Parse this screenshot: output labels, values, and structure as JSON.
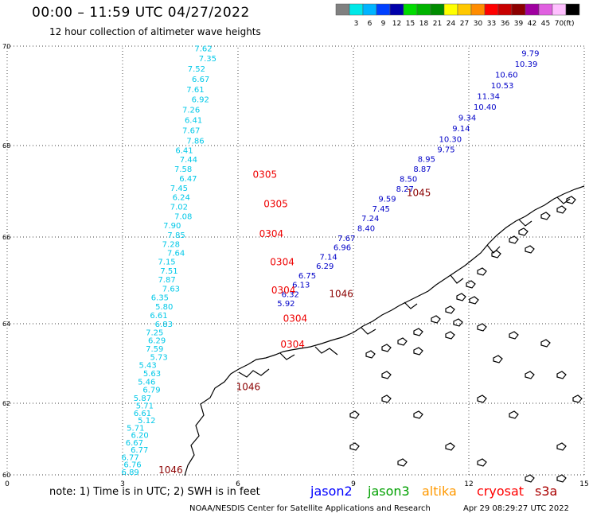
{
  "header": {
    "title": "00:00 – 11:59 UTC 04/27/2022",
    "subtitle": "12 hour collection of altimeter wave heights"
  },
  "legend": {
    "unit": "(ft)",
    "bins": [
      {
        "label": "",
        "color": "#808080"
      },
      {
        "label": "3",
        "color": "#00e8e8"
      },
      {
        "label": "6",
        "color": "#00b4ff"
      },
      {
        "label": "9",
        "color": "#0040ff"
      },
      {
        "label": "12",
        "color": "#0000aa"
      },
      {
        "label": "15",
        "color": "#00dc00"
      },
      {
        "label": "18",
        "color": "#00b400"
      },
      {
        "label": "21",
        "color": "#008c00"
      },
      {
        "label": "24",
        "color": "#ffff00"
      },
      {
        "label": "27",
        "color": "#ffc800"
      },
      {
        "label": "30",
        "color": "#ff8c00"
      },
      {
        "label": "33",
        "color": "#ff0000"
      },
      {
        "label": "36",
        "color": "#c80000"
      },
      {
        "label": "39",
        "color": "#8c0000"
      },
      {
        "label": "42",
        "color": "#a000a0"
      },
      {
        "label": "45",
        "color": "#e060e0"
      },
      {
        "label": "70",
        "color": "#ffc0ff"
      },
      {
        "label": "",
        "color": "#000000"
      }
    ]
  },
  "map": {
    "lon_range": [
      0,
      15
    ],
    "lat_range": [
      60,
      70
    ],
    "x_ticks": [
      "0",
      "3",
      "6",
      "9",
      "12",
      "15"
    ],
    "y_ticks": [
      "60",
      "62",
      "64",
      "66",
      "68",
      "70"
    ],
    "x_tick_values": [
      0,
      3,
      6,
      9,
      12,
      15
    ],
    "y_tick_values": [
      60,
      62,
      64,
      66,
      68,
      70
    ],
    "gridlines": "dotted"
  },
  "tracks": {
    "cyan": [
      "7.62",
      "7.35",
      "7.52",
      "6.67",
      "7.61",
      "6.92",
      "7.26",
      "6.41",
      "7.67",
      "7.86",
      "6.41",
      "7.44",
      "7.58",
      "6.47",
      "7.45",
      "6.24",
      "7.02",
      "7.08",
      "7.90",
      "7.85",
      "7.28",
      "7.64",
      "7.15",
      "7.51",
      "7.87",
      "7.63",
      "6.35",
      "5.80",
      "6.61",
      "6.83",
      "7.25",
      "6.29",
      "7.59",
      "5.73",
      "5.43",
      "5.63",
      "5.46",
      "6.79",
      "5.87",
      "5.71",
      "6.61",
      "5.12",
      "5.71",
      "6.20",
      "6.67",
      "6.77",
      "6.77",
      "6.76",
      "6.89"
    ],
    "blue": [
      "9.79",
      "10.39",
      "10.60",
      "10.53",
      "11.34",
      "10.40",
      "9.34",
      "9.14",
      "10.30",
      "9.75",
      "8.95",
      "8.87",
      "8.50",
      "8.27",
      "9.59",
      "7.45",
      "7.24",
      "8.40",
      "7.67",
      "6.96",
      "7.14",
      "6.29",
      "6.75",
      "6.13",
      "6.32",
      "5.92"
    ],
    "red": [
      "0305",
      "0305",
      "0304",
      "0304",
      "0304",
      "0304",
      "0304"
    ],
    "darkred": [
      "1045",
      "1046",
      "1046",
      "1046"
    ]
  },
  "footer": {
    "note": "note:  1) Time is in UTC;  2) SWH is in feet",
    "satellites": [
      {
        "name": "jason2",
        "color": "#0000ff"
      },
      {
        "name": "jason3",
        "color": "#00a000"
      },
      {
        "name": "altika",
        "color": "#ff9900"
      },
      {
        "name": "cryosat",
        "color": "#ff0000"
      },
      {
        "name": "s3a",
        "color": "#aa0000"
      }
    ],
    "credit": "NOAA/NESDIS Center for Satellite Applications and Research",
    "generated": "Apr 29 08:29:27 UTC 2022"
  }
}
